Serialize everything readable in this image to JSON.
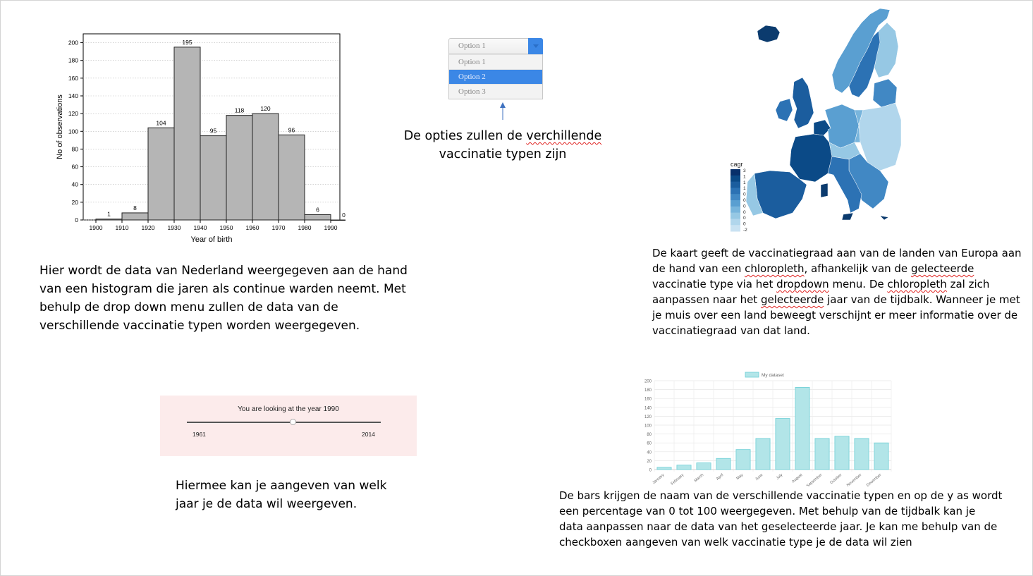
{
  "histogram": {
    "ylabel": "No of observations",
    "xlabel": "Year of birth",
    "yticks": [
      "0",
      "20",
      "40",
      "60",
      "80",
      "100",
      "120",
      "140",
      "160",
      "180",
      "200"
    ],
    "xticks": [
      "1900",
      "1910",
      "1920",
      "1930",
      "1940",
      "1950",
      "1960",
      "1970",
      "1980",
      "1990"
    ],
    "values": [
      1,
      8,
      104,
      195,
      95,
      118,
      120,
      96,
      6,
      0
    ],
    "value_labels": [
      "1",
      "8",
      "104",
      "195",
      "95",
      "118",
      "120",
      "96",
      "6",
      "0"
    ],
    "ymax": 210
  },
  "histogram_caption": {
    "l1": "Hier wordt de data van Nederland weergegeven aan de hand",
    "l2": "van een histogram die jaren als continue warden neemt. Met",
    "l3": "behulp de drop down menu zullen de data van de",
    "l4": "verschillende vaccinatie typen worden weergegeven."
  },
  "dropdown": {
    "selected": "Option 1",
    "options": [
      "Option 1",
      "Option 2",
      "Option 3"
    ],
    "accent": "#3b87e6"
  },
  "dropdown_caption": {
    "l1_a": "De opties zullen de ",
    "l1_b": "verchillende",
    "l2": "vaccinatie typen zijn"
  },
  "map": {
    "legend_title": "cagr",
    "legend_labels": [
      "3",
      "1",
      "1",
      "1",
      "0",
      "0",
      "0",
      "0",
      "0",
      "0",
      "-2"
    ],
    "colors": [
      "#08306b",
      "#0b4a87",
      "#1b5d9e",
      "#2c72b4",
      "#4188c4",
      "#5a9fd1",
      "#78b5dc",
      "#96c8e4",
      "#b1d6ec",
      "#c9e2f2"
    ]
  },
  "map_caption": {
    "l1": "De kaart geeft de vaccinatiegraad aan van de landen van Europa aan",
    "l2_a": "de hand van een ",
    "l2_b": "chloropleth",
    "l2_c": ", afhankelijk van de ",
    "l2_d": "gelecteerde",
    "l3_a": "vaccinatie type via het ",
    "l3_b": "dropdown",
    "l3_c": " menu. De ",
    "l3_d": "chloropleth",
    "l3_e": " zal zich",
    "l4_a": "aanpassen naar het ",
    "l4_b": "gelecteerde",
    "l4_c": " jaar van de tijdbalk. Wanneer je met",
    "l5": "je muis over een land beweegt verschijnt er meer informatie over de",
    "l6": "vaccinatiegraad van dat land."
  },
  "slider": {
    "title": "You are looking at the year 1990",
    "min": "1961",
    "max": "2014",
    "value": 1990,
    "min_value": 1961,
    "max_value": 2014
  },
  "slider_caption": {
    "l1": "Hiermee kan je aangeven van welk",
    "l2": "jaar je de data wil weergeven."
  },
  "chart_data": {
    "type": "bar",
    "title": "",
    "legend": "My dataset",
    "categories": [
      "January",
      "February",
      "March",
      "April",
      "May",
      "June",
      "July",
      "August",
      "September",
      "October",
      "November",
      "December"
    ],
    "values": [
      5,
      10,
      15,
      25,
      45,
      70,
      115,
      185,
      70,
      75,
      70,
      60
    ],
    "yticks": [
      "0",
      "20",
      "40",
      "60",
      "80",
      "100",
      "120",
      "140",
      "160",
      "180",
      "200"
    ],
    "ylim": [
      0,
      200
    ],
    "bar_fill": "#b2e5e8",
    "bar_stroke": "#6ccfd6"
  },
  "bar_caption": {
    "l1": "De bars krijgen de naam van de verschillende vaccinatie typen en op de y as wordt",
    "l2": "een percentage van 0 tot 100 weergegeven. Met behulp van de tijdbalk kan je",
    "l3": "data aanpassen naar de data van het geselecteerde jaar. Je kan me behulp van de",
    "l4": "checkboxen aangeven van welk vaccinatie type je de data wil zien"
  }
}
